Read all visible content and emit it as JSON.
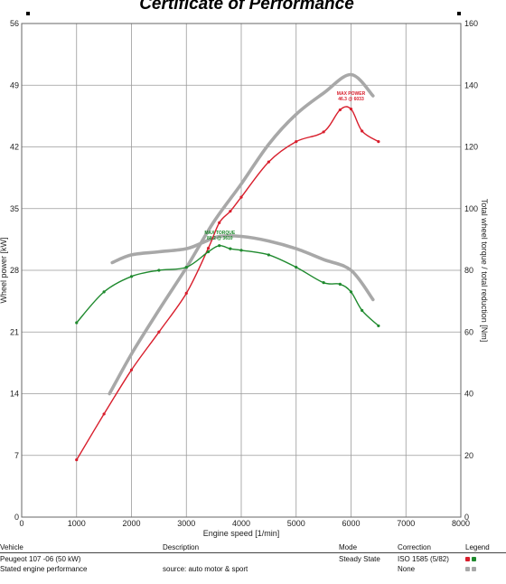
{
  "chart_data": {
    "type": "line",
    "title": "Certificate of Performance",
    "xlabel": "Engine speed [1/min]",
    "ylabel": "Wheel power [kW]",
    "y2label": "Total wheel torque / total reduction [Nm]",
    "xlim": [
      0,
      8000
    ],
    "ylim": [
      0,
      56
    ],
    "y2lim": [
      0,
      160
    ],
    "x_ticks": [
      0,
      1000,
      2000,
      3000,
      4000,
      5000,
      6000,
      7000,
      8000
    ],
    "y_ticks": [
      0,
      7,
      14,
      21,
      28,
      35,
      42,
      49,
      56
    ],
    "y2_ticks": [
      0,
      20,
      40,
      60,
      80,
      100,
      120,
      140,
      160
    ],
    "grid": true,
    "series": [
      {
        "name": "Wheel power",
        "axis": "left",
        "color": "#d81e2c",
        "markers": true,
        "x": [
          1000,
          1500,
          2000,
          2500,
          3000,
          3400,
          3600,
          3800,
          4000,
          4500,
          5000,
          5500,
          5800,
          6000,
          6200,
          6500
        ],
        "y": [
          6.5,
          11.7,
          16.7,
          21.0,
          25.4,
          30.5,
          33.4,
          34.7,
          36.3,
          40.3,
          42.6,
          43.7,
          46.2,
          46.3,
          43.8,
          42.6
        ]
      },
      {
        "name": "Total wheel torque / total reduction",
        "axis": "right",
        "color": "#1f8a2e",
        "markers": true,
        "x": [
          1000,
          1500,
          2000,
          2500,
          3000,
          3400,
          3600,
          3800,
          4000,
          4500,
          5000,
          5500,
          5800,
          6000,
          6200,
          6500
        ],
        "y": [
          63,
          73,
          78,
          80,
          81,
          86,
          88,
          87,
          86.5,
          85,
          81,
          76,
          75.5,
          73,
          67,
          62
        ]
      },
      {
        "name": "Stated engine performance (power)",
        "axis": "left",
        "color": "#a8a8a8",
        "markers": false,
        "x": [
          1600,
          2000,
          2500,
          3000,
          3500,
          4000,
          4500,
          5000,
          5500,
          6000,
          6400
        ],
        "y": [
          14,
          18.5,
          23.5,
          28.3,
          33.5,
          37.8,
          42.3,
          45.7,
          48.1,
          50.2,
          47.8
        ]
      },
      {
        "name": "Stated engine performance (torque)",
        "axis": "right",
        "color": "#a8a8a8",
        "markers": false,
        "x": [
          1650,
          2000,
          2500,
          3000,
          3300,
          3600,
          4000,
          4500,
          5000,
          5500,
          6000,
          6400
        ],
        "y": [
          82.5,
          85,
          86,
          87,
          89,
          91,
          91,
          89.5,
          87,
          83.5,
          80,
          70.5
        ]
      }
    ],
    "annotations": [
      {
        "label": "MAX POWER",
        "value": "46.3 @ 6033",
        "x": 6000,
        "y": 47.5,
        "axis": "left",
        "color": "#d81e2c"
      },
      {
        "label": "MAX TORQUE",
        "value": "88.2 @ 3610",
        "x": 3610,
        "y": 90.5,
        "axis": "right",
        "color": "#1f8a2e"
      }
    ]
  },
  "table": {
    "headers": [
      "Vehicle",
      "Description",
      "Mode",
      "Correction",
      "Legend"
    ],
    "rows": [
      {
        "vehicle": "Peugeot 107 -06 (50 kW)",
        "description": "",
        "mode": "Steady State",
        "correction": "ISO 1585 (5/82)",
        "legend_colors": [
          "#d81e2c",
          "#1f8a2e"
        ]
      },
      {
        "vehicle": "Stated engine performance",
        "description": "source: auto motor & sport",
        "mode": "",
        "correction": "None",
        "legend_colors": [
          "#a8a8a8",
          "#a8a8a8"
        ]
      }
    ]
  }
}
